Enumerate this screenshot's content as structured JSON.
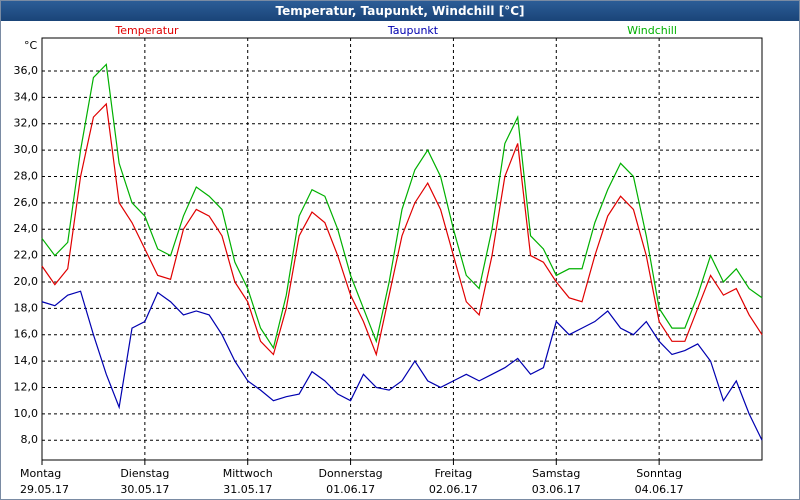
{
  "chart_data": {
    "type": "line",
    "title": "Temperatur, Taupunkt, Windchill [°C]",
    "y_unit": "°C",
    "x": [
      0,
      3,
      6,
      9,
      12,
      15,
      18,
      21,
      24,
      27,
      30,
      33,
      36,
      39,
      42,
      45,
      48,
      51,
      54,
      57,
      60,
      63,
      66,
      69,
      72,
      75,
      78,
      81,
      84,
      87,
      90,
      93,
      96,
      99,
      102,
      105,
      108,
      111,
      114,
      117,
      120,
      123,
      126,
      129,
      132,
      135,
      138,
      141,
      144,
      147,
      150,
      153,
      156,
      159,
      162,
      165,
      168
    ],
    "series": [
      {
        "name": "Temperatur",
        "color": "#e00000",
        "values": [
          21.2,
          19.8,
          21,
          28,
          32.5,
          33.5,
          26,
          24.5,
          22.5,
          20.5,
          20.2,
          24,
          25.5,
          25,
          23.5,
          20,
          18.5,
          15.5,
          14.5,
          18,
          23.5,
          25.3,
          24.5,
          22,
          19,
          17,
          14.5,
          19,
          23.5,
          26,
          27.5,
          25.5,
          22,
          18.5,
          17.5,
          22,
          28,
          30.5,
          22,
          21.5,
          20,
          18.8,
          18.5,
          22,
          25,
          26.5,
          25.5,
          22,
          17,
          15.5,
          15.5,
          18,
          20.5,
          19,
          19.5,
          17.5,
          16
        ]
      },
      {
        "name": "Taupunkt",
        "color": "#0000b0",
        "values": [
          18.5,
          18.2,
          19,
          19.3,
          16,
          13,
          10.5,
          16.5,
          17,
          19.2,
          18.5,
          17.5,
          17.8,
          17.5,
          16,
          14,
          12.5,
          11.8,
          11,
          11.3,
          11.5,
          13.2,
          12.5,
          11.5,
          11,
          13,
          12,
          11.8,
          12.5,
          14,
          12.5,
          12,
          12.5,
          13,
          12.5,
          13,
          13.5,
          14.2,
          13,
          13.5,
          17,
          16,
          16.5,
          17,
          17.8,
          16.5,
          16,
          17,
          15.5,
          14.5,
          14.8,
          15.3,
          14,
          11,
          12.5,
          10,
          8
        ]
      },
      {
        "name": "Windchill",
        "color": "#00b000",
        "values": [
          23.3,
          22,
          23,
          30,
          35.5,
          36.5,
          29,
          26,
          25,
          22.5,
          22,
          25,
          27.2,
          26.5,
          25.5,
          21.5,
          19.5,
          16.5,
          15,
          19,
          25,
          27,
          26.5,
          24,
          20.5,
          18,
          15.5,
          20,
          25.5,
          28.5,
          30,
          28,
          24,
          20.5,
          19.5,
          24,
          30.5,
          32.5,
          23.5,
          22.5,
          20.5,
          21,
          21,
          24.5,
          27,
          29,
          28,
          23.5,
          18,
          16.5,
          16.5,
          19,
          22,
          20,
          21,
          19.5,
          18.8
        ]
      }
    ],
    "xlim": [
      0,
      168
    ],
    "xticks": [
      {
        "value": 0,
        "label": "Montag",
        "date": "29.05.17"
      },
      {
        "value": 24,
        "label": "Dienstag",
        "date": "30.05.17"
      },
      {
        "value": 48,
        "label": "Mittwoch",
        "date": "31.05.17"
      },
      {
        "value": 72,
        "label": "Donnerstag",
        "date": "01.06.17"
      },
      {
        "value": 96,
        "label": "Freitag",
        "date": "02.06.17"
      },
      {
        "value": 120,
        "label": "Samstag",
        "date": "03.06.17"
      },
      {
        "value": 144,
        "label": "Sonntag",
        "date": "04.06.17"
      }
    ],
    "ylim": [
      6.5,
      38.5
    ],
    "yticks": [
      {
        "value": 8,
        "label": "8,0"
      },
      {
        "value": 10,
        "label": "10,0"
      },
      {
        "value": 12,
        "label": "12,0"
      },
      {
        "value": 14,
        "label": "14,0"
      },
      {
        "value": 16,
        "label": "16,0"
      },
      {
        "value": 18,
        "label": "18,0"
      },
      {
        "value": 20,
        "label": "20,0"
      },
      {
        "value": 22,
        "label": "22,0"
      },
      {
        "value": 24,
        "label": "24,0"
      },
      {
        "value": 26,
        "label": "26,0"
      },
      {
        "value": 28,
        "label": "28,0"
      },
      {
        "value": 30,
        "label": "30,0"
      },
      {
        "value": 32,
        "label": "32,0"
      },
      {
        "value": 34,
        "label": "34,0"
      },
      {
        "value": 36,
        "label": "36,0"
      }
    ],
    "grid": true
  }
}
